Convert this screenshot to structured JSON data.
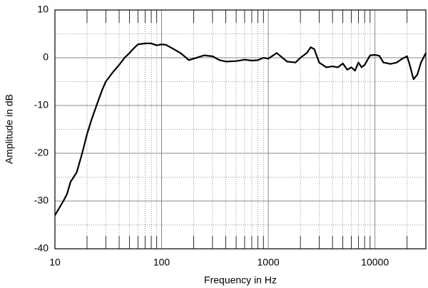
{
  "chart_data": {
    "type": "line",
    "xlabel": "Frequency in Hz",
    "ylabel": "Amplitude in dB",
    "x": [
      10,
      12,
      13,
      14,
      16,
      18,
      20,
      22,
      25,
      28,
      30,
      35,
      40,
      45,
      50,
      55,
      60,
      70,
      80,
      90,
      100,
      110,
      130,
      150,
      170,
      180,
      200,
      250,
      300,
      350,
      400,
      500,
      600,
      700,
      800,
      900,
      1000,
      1200,
      1500,
      1800,
      2000,
      2300,
      2500,
      2700,
      3000,
      3500,
      4000,
      4500,
      5000,
      5500,
      6000,
      6500,
      7000,
      7500,
      8000,
      9000,
      10000,
      11000,
      12000,
      14000,
      16000,
      18000,
      20000,
      21000,
      23000,
      25000,
      27000,
      30000
    ],
    "values": [
      -33,
      -30,
      -28.5,
      -26,
      -24,
      -20,
      -16,
      -13,
      -9.5,
      -6.5,
      -5,
      -3,
      -1.5,
      0,
      1,
      2,
      2.8,
      3,
      3,
      2.6,
      2.8,
      2.7,
      1.8,
      1,
      0,
      -0.5,
      -0.2,
      0.5,
      0.3,
      -0.5,
      -0.8,
      -0.7,
      -0.4,
      -0.6,
      -0.5,
      0,
      -0.2,
      1,
      -0.8,
      -1,
      0,
      1,
      2.2,
      1.8,
      -1,
      -2,
      -1.8,
      -2,
      -1.2,
      -2.5,
      -2,
      -2.7,
      -1,
      -2,
      -1.5,
      0.5,
      0.6,
      0.4,
      -1,
      -1.3,
      -1,
      -0.2,
      0.3,
      -1.2,
      -4.5,
      -3.5,
      -1,
      1
    ],
    "color": "#000000",
    "xlim": [
      10,
      30000
    ],
    "xticks": [
      10,
      100,
      1000,
      10000
    ],
    "xlog": true,
    "ylim": [
      -40,
      10
    ],
    "yticks": [
      10,
      0,
      -10,
      -20,
      -30,
      -40
    ],
    "grid": true
  }
}
